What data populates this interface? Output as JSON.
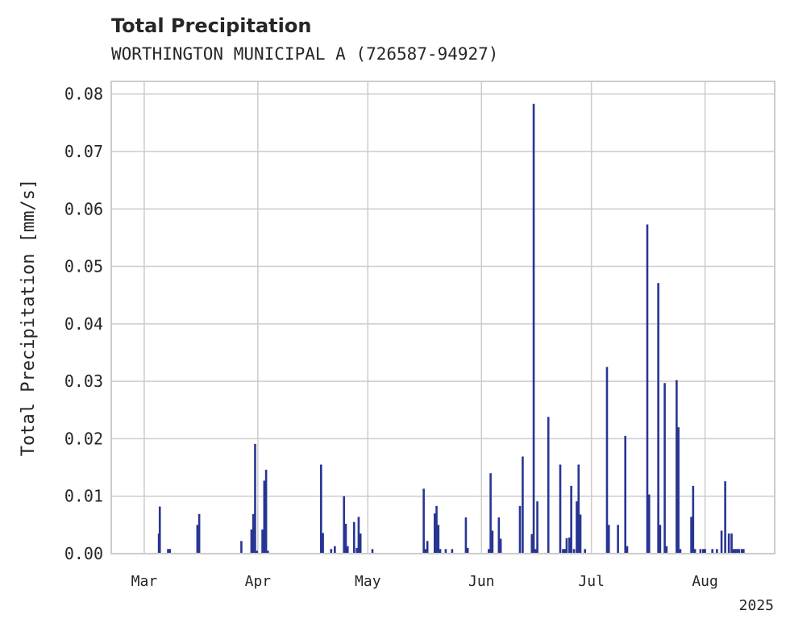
{
  "chart_data": {
    "type": "bar",
    "title": "Total Precipitation",
    "subtitle": "WORTHINGTON MUNICIPAL A (726587-94927)",
    "ylabel": "Total Precipitation [mm/s]",
    "xlabel": "",
    "x_offset_label": "2025",
    "ylim": [
      0,
      0.0822
    ],
    "xlim": [
      "2025-02-20",
      "2025-08-20"
    ],
    "yticks": [
      "0.00",
      "0.01",
      "0.02",
      "0.03",
      "0.04",
      "0.05",
      "0.06",
      "0.07",
      "0.08"
    ],
    "xticks": [
      {
        "date": "2025-03-01",
        "label": "Mar"
      },
      {
        "date": "2025-04-01",
        "label": "Apr"
      },
      {
        "date": "2025-05-01",
        "label": "May"
      },
      {
        "date": "2025-06-01",
        "label": "Jun"
      },
      {
        "date": "2025-07-01",
        "label": "Jul"
      },
      {
        "date": "2025-08-01",
        "label": "Aug"
      }
    ],
    "grid": true,
    "bar_color": "#283593",
    "series": [
      {
        "x": [
          "2025-03-05T00:00",
          "2025-03-05T06:00",
          "2025-03-07T12:00",
          "2025-03-08T00:00",
          "2025-03-15T12:00",
          "2025-03-16T00:00",
          "2025-03-27T12:00",
          "2025-03-30T06:00",
          "2025-03-30T18:00",
          "2025-03-31T06:00",
          "2025-03-31T18:00",
          "2025-04-02T06:00",
          "2025-04-02T18:00",
          "2025-04-03T06:00",
          "2025-04-03T18:00",
          "2025-04-18T06:00",
          "2025-04-18T18:00",
          "2025-04-21T00:00",
          "2025-04-22T00:00",
          "2025-04-24T12:00",
          "2025-04-25T00:00",
          "2025-04-25T12:00",
          "2025-04-27T06:00",
          "2025-04-28T00:00",
          "2025-04-28T12:00",
          "2025-04-29T00:00",
          "2025-05-02T06:00",
          "2025-05-16T06:00",
          "2025-05-16T18:00",
          "2025-05-17T06:00",
          "2025-05-19T06:00",
          "2025-05-19T18:00",
          "2025-05-20T06:00",
          "2025-05-20T18:00",
          "2025-05-22T06:00",
          "2025-05-24T00:00",
          "2025-05-27T18:00",
          "2025-05-28T06:00",
          "2025-06-03T00:00",
          "2025-06-03T12:00",
          "2025-06-04T00:00",
          "2025-06-05T18:00",
          "2025-06-06T06:00",
          "2025-06-11T12:00",
          "2025-06-12T06:00",
          "2025-06-14T18:00",
          "2025-06-15T06:00",
          "2025-06-15T18:00",
          "2025-06-16T06:00",
          "2025-06-19T06:00",
          "2025-06-22T12:00",
          "2025-06-23T06:00",
          "2025-06-23T18:00",
          "2025-06-24T06:00",
          "2025-06-25T00:00",
          "2025-06-25T12:00",
          "2025-06-26T06:00",
          "2025-06-27T00:00",
          "2025-06-27T12:00",
          "2025-06-28T00:00",
          "2025-06-29T06:00",
          "2025-07-05T06:00",
          "2025-07-05T18:00",
          "2025-07-08T06:00",
          "2025-07-10T06:00",
          "2025-07-10T18:00",
          "2025-07-16T06:00",
          "2025-07-16T18:00",
          "2025-07-19T06:00",
          "2025-07-19T18:00",
          "2025-07-21T00:00",
          "2025-07-21T12:00",
          "2025-07-24T06:00",
          "2025-07-24T18:00",
          "2025-07-25T06:00",
          "2025-07-28T06:00",
          "2025-07-28T18:00",
          "2025-07-29T06:00",
          "2025-07-30T18:00",
          "2025-07-31T12:00",
          "2025-08-01T00:00",
          "2025-08-03T00:00",
          "2025-08-04T06:00",
          "2025-08-05T12:00",
          "2025-08-06T12:00",
          "2025-08-07T12:00",
          "2025-08-08T06:00",
          "2025-08-08T18:00",
          "2025-08-09T06:00",
          "2025-08-09T18:00",
          "2025-08-10T06:00",
          "2025-08-11T00:00",
          "2025-08-11T12:00"
        ],
        "values": [
          0.0035,
          0.0082,
          0.0008,
          0.0008,
          0.005,
          0.0069,
          0.0022,
          0.0042,
          0.0069,
          0.0191,
          0.0005,
          0.0042,
          0.0127,
          0.0146,
          0.0005,
          0.0155,
          0.0036,
          0.0008,
          0.0013,
          0.01,
          0.0052,
          0.0013,
          0.0055,
          0.001,
          0.0064,
          0.0035,
          0.0008,
          0.0113,
          0.0008,
          0.0022,
          0.007,
          0.0083,
          0.005,
          0.0008,
          0.0008,
          0.0008,
          0.0063,
          0.001,
          0.0008,
          0.014,
          0.004,
          0.0063,
          0.0026,
          0.0083,
          0.0169,
          0.0034,
          0.0783,
          0.0008,
          0.0091,
          0.0238,
          0.0155,
          0.0008,
          0.0008,
          0.0027,
          0.0028,
          0.0118,
          0.0008,
          0.0091,
          0.0155,
          0.0068,
          0.0008,
          0.0325,
          0.005,
          0.005,
          0.0205,
          0.0013,
          0.0573,
          0.0103,
          0.0471,
          0.005,
          0.0297,
          0.0013,
          0.0302,
          0.022,
          0.0008,
          0.0064,
          0.0118,
          0.0008,
          0.0008,
          0.0008,
          0.0008,
          0.0008,
          0.0008,
          0.004,
          0.0126,
          0.0035,
          0.0035,
          0.0008,
          0.0008,
          0.0008,
          0.0008,
          0.0008,
          0.0008
        ]
      }
    ]
  }
}
